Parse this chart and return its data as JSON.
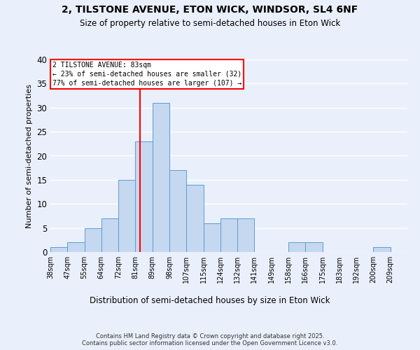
{
  "title1": "2, TILSTONE AVENUE, ETON WICK, WINDSOR, SL4 6NF",
  "title2": "Size of property relative to semi-detached houses in Eton Wick",
  "xlabel": "Distribution of semi-detached houses by size in Eton Wick",
  "ylabel": "Number of semi-detached properties",
  "bin_labels": [
    "38sqm",
    "47sqm",
    "55sqm",
    "64sqm",
    "72sqm",
    "81sqm",
    "89sqm",
    "98sqm",
    "107sqm",
    "115sqm",
    "124sqm",
    "132sqm",
    "141sqm",
    "149sqm",
    "158sqm",
    "166sqm",
    "175sqm",
    "183sqm",
    "192sqm",
    "200sqm",
    "209sqm"
  ],
  "bar_values": [
    1,
    2,
    5,
    7,
    15,
    23,
    31,
    17,
    14,
    6,
    7,
    7,
    0,
    0,
    2,
    2,
    0,
    0,
    0,
    1,
    0
  ],
  "bar_color": "#c5d8f0",
  "bar_edge_color": "#5b9bd5",
  "vline_x": 5.25,
  "vline_color": "red",
  "annotation_title": "2 TILSTONE AVENUE: 83sqm",
  "annotation_line1": "← 23% of semi-detached houses are smaller (32)",
  "annotation_line2": "77% of semi-detached houses are larger (107) →",
  "annotation_box_color": "white",
  "annotation_box_edge": "red",
  "ylim": [
    0,
    40
  ],
  "yticks": [
    0,
    5,
    10,
    15,
    20,
    25,
    30,
    35,
    40
  ],
  "bg_color": "#eaf0fb",
  "plot_bg_color": "#eaf0fb",
  "footer": "Contains HM Land Registry data © Crown copyright and database right 2025.\nContains public sector information licensed under the Open Government Licence v3.0.",
  "n_bins": 21
}
